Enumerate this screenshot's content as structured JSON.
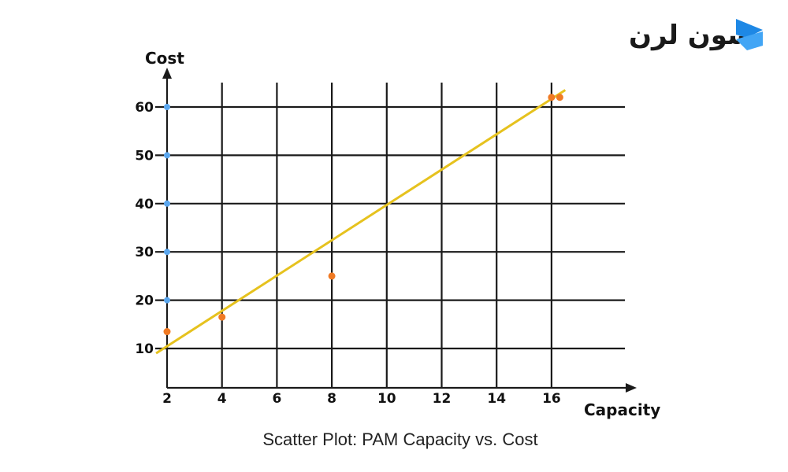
{
  "logo": {
    "text": "سون لرن",
    "accent_color": "#1e88e5"
  },
  "caption": "Scatter Plot: PAM Capacity vs. Cost",
  "chart_data": {
    "type": "scatter",
    "xlabel": "Capacity",
    "ylabel": "Cost",
    "xlim": [
      2,
      16
    ],
    "ylim": [
      10,
      60
    ],
    "x_ticks": [
      2,
      4,
      6,
      8,
      10,
      12,
      14,
      16
    ],
    "y_ticks": [
      10,
      20,
      30,
      40,
      50,
      60
    ],
    "grid": true,
    "axis_point_color": "#5aa6ee",
    "axis_points": [
      {
        "x": 2,
        "y": 20
      },
      {
        "x": 2,
        "y": 30
      },
      {
        "x": 2,
        "y": 40
      },
      {
        "x": 2,
        "y": 50
      },
      {
        "x": 2,
        "y": 60
      }
    ],
    "series": [
      {
        "color": "#f07a24",
        "points": [
          {
            "x": 2,
            "y": 13.5
          },
          {
            "x": 4,
            "y": 16.5
          },
          {
            "x": 8,
            "y": 25
          },
          {
            "x": 16,
            "y": 62
          },
          {
            "x": 16.3,
            "y": 62
          }
        ]
      }
    ],
    "trendline": {
      "color": "#e6c21e",
      "from": {
        "x": 1.6,
        "y": 9
      },
      "to": {
        "x": 16.5,
        "y": 63.5
      }
    }
  }
}
